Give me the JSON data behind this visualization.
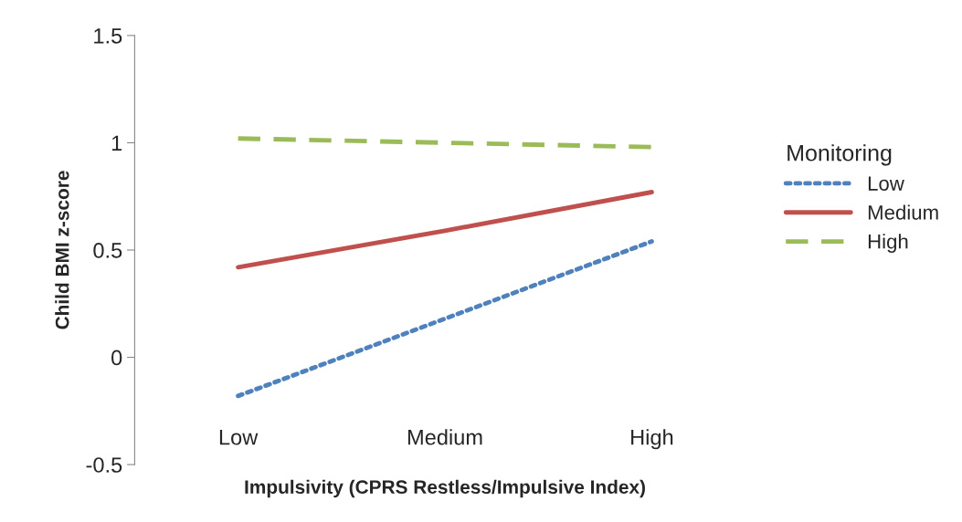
{
  "chart_data": {
    "type": "line",
    "xlabel": "Impulsivity (CPRS Restless/Impulsive Index)",
    "ylabel": "Child BMI z-score",
    "legend_title": "Monitoring",
    "categories": [
      "Low",
      "Medium",
      "High"
    ],
    "series": [
      {
        "name": "Low",
        "color": "#4f81bd",
        "line_style": "dotted",
        "values": [
          -0.18,
          0.18,
          0.54
        ]
      },
      {
        "name": "Medium",
        "color": "#c0504d",
        "line_style": "solid",
        "values": [
          0.42,
          0.59,
          0.77
        ]
      },
      {
        "name": "High",
        "color": "#9bbb59",
        "line_style": "dashed",
        "values": [
          1.02,
          1.0,
          0.98
        ]
      }
    ],
    "ylim": [
      -0.5,
      1.5
    ],
    "yticks": [
      -0.5,
      0,
      0.5,
      1,
      1.5
    ],
    "grid": false,
    "legend": "right",
    "marker": "none"
  }
}
